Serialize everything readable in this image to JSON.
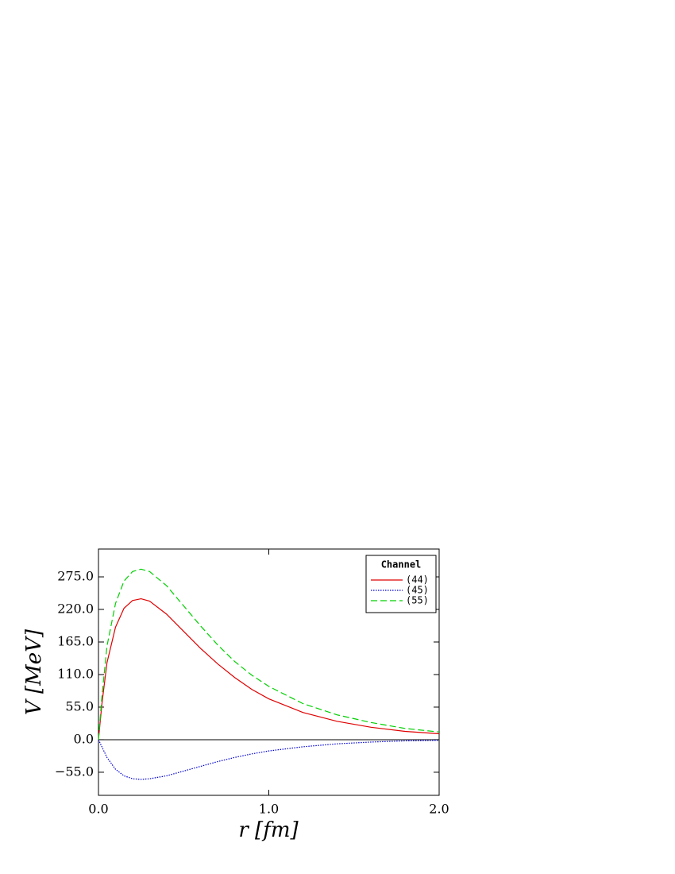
{
  "chart_data": {
    "type": "line",
    "xlabel": "r [fm]",
    "ylabel": "V [MeV]",
    "legend_title": "Channel",
    "legend": "upper right",
    "x": [
      0,
      0.02,
      0.05,
      0.1,
      0.15,
      0.2,
      0.25,
      0.3,
      0.4,
      0.5,
      0.6,
      0.7,
      0.8,
      0.9,
      1.0,
      1.2,
      1.4,
      1.6,
      1.8,
      2.0
    ],
    "series": [
      {
        "name": "(44)",
        "color": "#e00000",
        "dash": "solid",
        "values": [
          0,
          60,
          130,
          190,
          222,
          235,
          238,
          234,
          212,
          183,
          154,
          128,
          105,
          85,
          69,
          46,
          31,
          21,
          14,
          10
        ]
      },
      {
        "name": "(45)",
        "color": "#0000d0",
        "dash": "dotted",
        "values": [
          0,
          -12,
          -30,
          -50,
          -61,
          -66,
          -67,
          -66,
          -61,
          -53,
          -45,
          -37,
          -30,
          -24,
          -19,
          -12,
          -7,
          -4,
          -2,
          -1
        ]
      },
      {
        "name": "(55)",
        "color": "#00d000",
        "dash": "dashed",
        "values": [
          0,
          72,
          158,
          230,
          268,
          284,
          288,
          284,
          260,
          226,
          192,
          160,
          132,
          109,
          90,
          61,
          42,
          29,
          19,
          13
        ]
      }
    ],
    "xlim": [
      0,
      2
    ],
    "xticks": [
      {
        "value": 0,
        "label": "0.0"
      },
      {
        "value": 1,
        "label": "1.0"
      },
      {
        "value": 2,
        "label": "2.0"
      }
    ],
    "ylim": [
      -94,
      322
    ],
    "yticks": [
      {
        "value": -55,
        "label": "−55.0"
      },
      {
        "value": 0,
        "label": "0.0"
      },
      {
        "value": 55,
        "label": "55.0"
      },
      {
        "value": 110,
        "label": "110.0"
      },
      {
        "value": 165,
        "label": "165.0"
      },
      {
        "value": 220,
        "label": "220.0"
      },
      {
        "value": 275,
        "label": "275.0"
      }
    ],
    "zero_line": true
  }
}
